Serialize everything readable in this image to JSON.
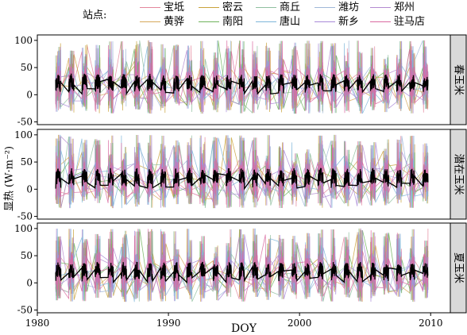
{
  "legend": {
    "title": "站点:",
    "items": [
      {
        "label": "宝坻",
        "color": "#e4879c"
      },
      {
        "label": "密云",
        "color": "#c9a23b"
      },
      {
        "label": "商丘",
        "color": "#8fbf9f"
      },
      {
        "label": "潍坊",
        "color": "#9fb7d8"
      },
      {
        "label": "郑州",
        "color": "#b48ad0"
      },
      {
        "label": "黄骅",
        "color": "#d6a85a"
      },
      {
        "label": "南阳",
        "color": "#6fb35c"
      },
      {
        "label": "唐山",
        "color": "#7fb6d9"
      },
      {
        "label": "新乡",
        "color": "#a98ad8"
      },
      {
        "label": "驻马店",
        "color": "#d96aa0"
      }
    ]
  },
  "chart_data": {
    "type": "line",
    "xlabel": "DOY",
    "ylabel": "显热 (W·m⁻²)",
    "xlim": [
      1980,
      2011.5
    ],
    "xticks": [
      1980,
      1990,
      2000,
      2010
    ],
    "ylim": [
      -55,
      110
    ],
    "yticks": [
      -50,
      0,
      50,
      100
    ],
    "seasonal_cycle": {
      "start_year": 1981.4,
      "end_year": 2009.8,
      "peak_range": [
        40,
        100
      ],
      "trough_range": [
        -35,
        -10
      ],
      "mean_level": 15
    },
    "panels": [
      {
        "label": "春玉米"
      },
      {
        "label": "潜在玉米"
      },
      {
        "label": "夏玉米"
      }
    ]
  }
}
